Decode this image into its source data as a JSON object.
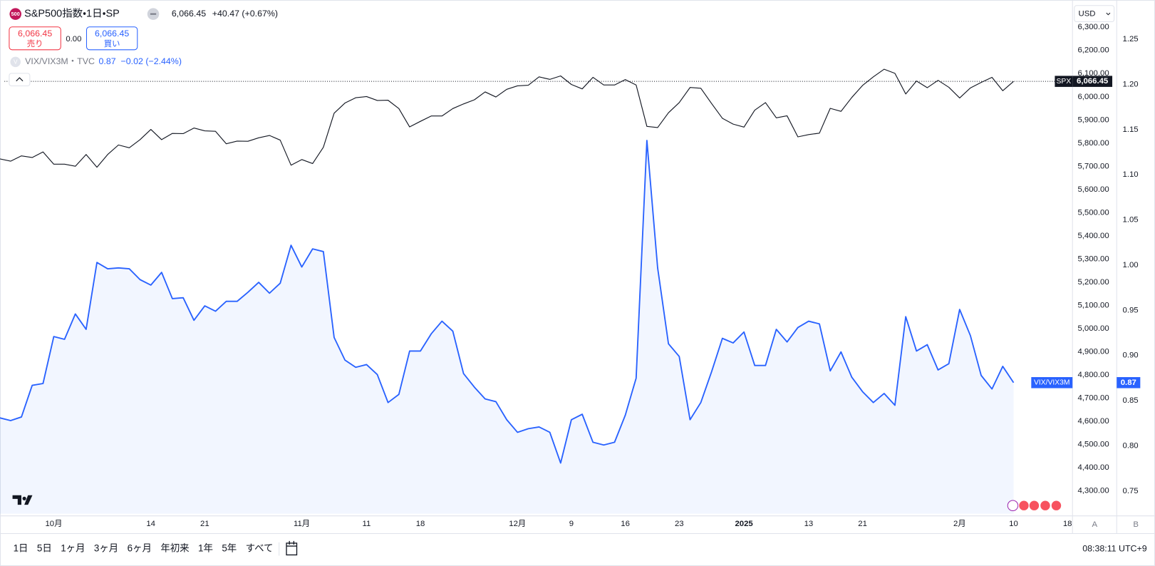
{
  "header": {
    "icon": "500",
    "symbol": "S&P500指数・1日・SP",
    "last": "6,066.45",
    "change": "+40.47 (+0.67%)",
    "sell_price": "6,066.45",
    "sell": "売り",
    "spread": "0.00",
    "buy_price": "6,066.45",
    "buy": "買い",
    "compare_icon": "V",
    "compare": "VIX/VIX3M・TVC",
    "compare_last": "0.87",
    "compare_change": "−0.02 (−2.44%)",
    "currency": "USD"
  },
  "axis_buttons": [
    "A",
    "B"
  ],
  "toolbar": {
    "ranges": [
      "1日",
      "5日",
      "1ヶ月",
      "3ヶ月",
      "6ヶ月",
      "年初来",
      "1年",
      "5年",
      "すべて"
    ],
    "time": "08:38:11 UTC+9"
  },
  "chart_data": {
    "type": "line",
    "grid": false,
    "categories": [
      null,
      null,
      null,
      null,
      null,
      "10月",
      null,
      null,
      null,
      null,
      null,
      null,
      null,
      null,
      "14",
      null,
      null,
      null,
      null,
      "21",
      null,
      null,
      null,
      null,
      null,
      null,
      null,
      null,
      "11月",
      null,
      null,
      null,
      null,
      null,
      "11",
      null,
      null,
      null,
      null,
      "18",
      null,
      null,
      null,
      null,
      null,
      null,
      null,
      null,
      "12月",
      null,
      null,
      null,
      null,
      "9",
      null,
      null,
      null,
      null,
      "16",
      null,
      null,
      null,
      null,
      "23",
      null,
      null,
      null,
      null,
      null,
      "2025",
      null,
      null,
      null,
      null,
      null,
      "13",
      null,
      null,
      null,
      null,
      "21",
      null,
      null,
      null,
      null,
      null,
      null,
      null,
      null,
      "2月",
      null,
      null,
      null,
      null,
      "10",
      null,
      null,
      null,
      null,
      "18"
    ],
    "series": [
      {
        "name": "SPX",
        "color": "#131722",
        "axis": "y",
        "values": [
          5732,
          5722,
          5745,
          5738,
          5762,
          5709,
          5709,
          5700,
          5751,
          5696,
          5751,
          5792,
          5780,
          5815,
          5859,
          5815,
          5842,
          5841,
          5865,
          5853,
          5851,
          5797,
          5809,
          5808,
          5823,
          5833,
          5813,
          5705,
          5729,
          5712,
          5782,
          5929,
          5973,
          5996,
          6001,
          5984,
          5985,
          5949,
          5870,
          5894,
          5917,
          5917,
          5949,
          5969,
          5987,
          6021,
          5999,
          6032,
          6047,
          6050,
          6086,
          6075,
          6090,
          6053,
          6034,
          6084,
          6051,
          6051,
          6074,
          6051,
          5872,
          5867,
          5931,
          5975,
          6040,
          6037,
          5971,
          5907,
          5882,
          5869,
          5942,
          5975,
          5909,
          5918,
          5827,
          5837,
          5843,
          5950,
          5937,
          5997,
          6049,
          6086,
          6119,
          6101,
          6012,
          6068,
          6039,
          6071,
          6041,
          5995,
          6038,
          6062,
          6084,
          6026,
          6066.45,
          null,
          null,
          null,
          null,
          null
        ]
      },
      {
        "name": "VIX/VIX3M",
        "color": "#2962ff",
        "axis": "y2",
        "area": true,
        "values": [
          0.831,
          0.828,
          0.832,
          0.867,
          0.869,
          0.921,
          0.918,
          0.946,
          0.929,
          1.003,
          0.996,
          0.997,
          0.996,
          0.984,
          0.978,
          0.992,
          0.963,
          0.964,
          0.939,
          0.955,
          0.949,
          0.96,
          0.96,
          0.97,
          0.981,
          0.969,
          0.98,
          1.022,
          0.998,
          1.018,
          1.015,
          0.92,
          0.895,
          0.887,
          0.89,
          0.879,
          0.848,
          0.857,
          0.905,
          0.905,
          0.924,
          0.938,
          0.927,
          0.88,
          0.865,
          0.852,
          0.849,
          0.829,
          0.815,
          0.819,
          0.821,
          0.815,
          0.781,
          0.829,
          0.835,
          0.804,
          0.801,
          0.804,
          0.834,
          0.875,
          1.138,
          0.997,
          0.913,
          0.899,
          0.829,
          0.848,
          0.882,
          0.919,
          0.914,
          0.926,
          0.889,
          0.889,
          0.929,
          0.915,
          0.931,
          0.938,
          0.935,
          0.883,
          0.904,
          0.876,
          0.86,
          0.848,
          0.858,
          0.845,
          0.943,
          0.905,
          0.912,
          0.884,
          0.891,
          0.951,
          0.922,
          0.878,
          0.863,
          0.888,
          0.87,
          null,
          null,
          null,
          null,
          null
        ]
      }
    ],
    "ylim": [
      4201,
      6408
    ],
    "yticks": [
      {
        "value": 4300,
        "label": "4,300.00"
      },
      {
        "value": 4400,
        "label": "4,400.00"
      },
      {
        "value": 4500,
        "label": "4,500.00"
      },
      {
        "value": 4600,
        "label": "4,600.00"
      },
      {
        "value": 4700,
        "label": "4,700.00"
      },
      {
        "value": 4800,
        "label": "4,800.00"
      },
      {
        "value": 4900,
        "label": "4,900.00"
      },
      {
        "value": 5000,
        "label": "5,000.00"
      },
      {
        "value": 5100,
        "label": "5,100.00"
      },
      {
        "value": 5200,
        "label": "5,200.00"
      },
      {
        "value": 5300,
        "label": "5,300.00"
      },
      {
        "value": 5400,
        "label": "5,400.00"
      },
      {
        "value": 5500,
        "label": "5,500.00"
      },
      {
        "value": 5600,
        "label": "5,600.00"
      },
      {
        "value": 5700,
        "label": "5,700.00"
      },
      {
        "value": 5800,
        "label": "5,800.00"
      },
      {
        "value": 5900,
        "label": "5,900.00"
      },
      {
        "value": 6000,
        "label": "6,000.00"
      },
      {
        "value": 6100,
        "label": "6,100.00"
      },
      {
        "value": 6200,
        "label": "6,200.00"
      },
      {
        "value": 6300,
        "label": "6,300.00"
      }
    ],
    "y2lim": [
      0.725,
      1.291
    ],
    "y2ticks": [
      0.75,
      {
        "value": 0.8,
        "label": "0.80"
      },
      0.85,
      {
        "value": 0.9,
        "label": "0.90"
      },
      0.95,
      {
        "value": 1,
        "label": "1.00"
      },
      1.05,
      {
        "value": 1.1,
        "label": "1.10"
      },
      1.15,
      {
        "value": 1.2,
        "label": "1.20"
      },
      1.25
    ]
  }
}
